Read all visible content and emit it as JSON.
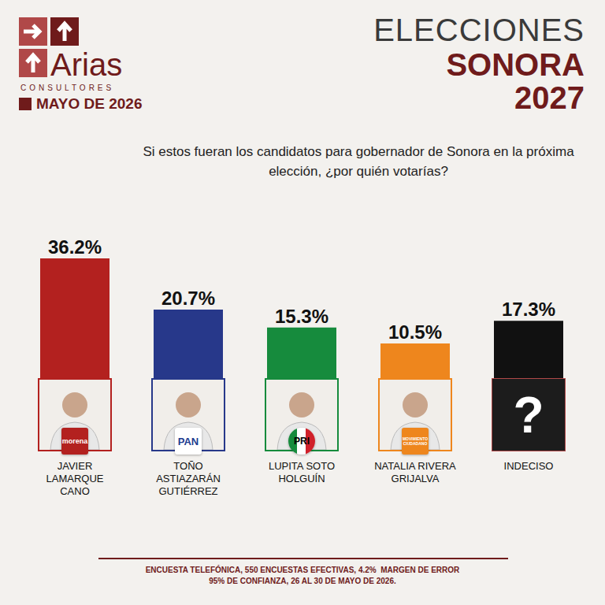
{
  "header": {
    "brand": "Arias",
    "brand_sub": "CONSULTORES",
    "date": "MAYO DE 2026",
    "title_line1": "ELECCIONES",
    "title_line2": "SONORA",
    "title_line3": "2027"
  },
  "chart_data": {
    "type": "bar",
    "title": "Si estos fueran los candidatos para gobernador de Sonora en la próxima elección, ¿por quién votarías?",
    "categories": [
      "JAVIER LAMARQUE CANO",
      "TOÑO ASTIAZARÁN GUTIÉRREZ",
      "LUPITA SOTO HOLGUÍN",
      "NATALIA RIVERA GRIJALVA",
      "INDECISO"
    ],
    "values": [
      36.2,
      20.7,
      15.3,
      10.5,
      17.3
    ],
    "value_labels": [
      "36.2%",
      "20.7%",
      "15.3%",
      "10.5%",
      "17.3%"
    ],
    "colors": [
      "#b3211f",
      "#27388a",
      "#168b3d",
      "#ee861d",
      "#111111"
    ],
    "ylim": [
      0,
      40
    ],
    "data_labels": true,
    "tick_labels": false
  },
  "photos": {
    "parties": [
      "morena",
      "PAN",
      "PRI",
      "MOVIMIENTO CIUDADANO",
      null
    ],
    "undecided_mark": "?"
  },
  "footer": {
    "line1": "ENCUESTA TELEFÓNICA, 550 ENCUESTAS EFECTIVAS, 4.2%  MARGEN DE ERROR",
    "line2": "95% DE CONFIANZA, 26 AL 30 DE MAYO DE 2026."
  }
}
